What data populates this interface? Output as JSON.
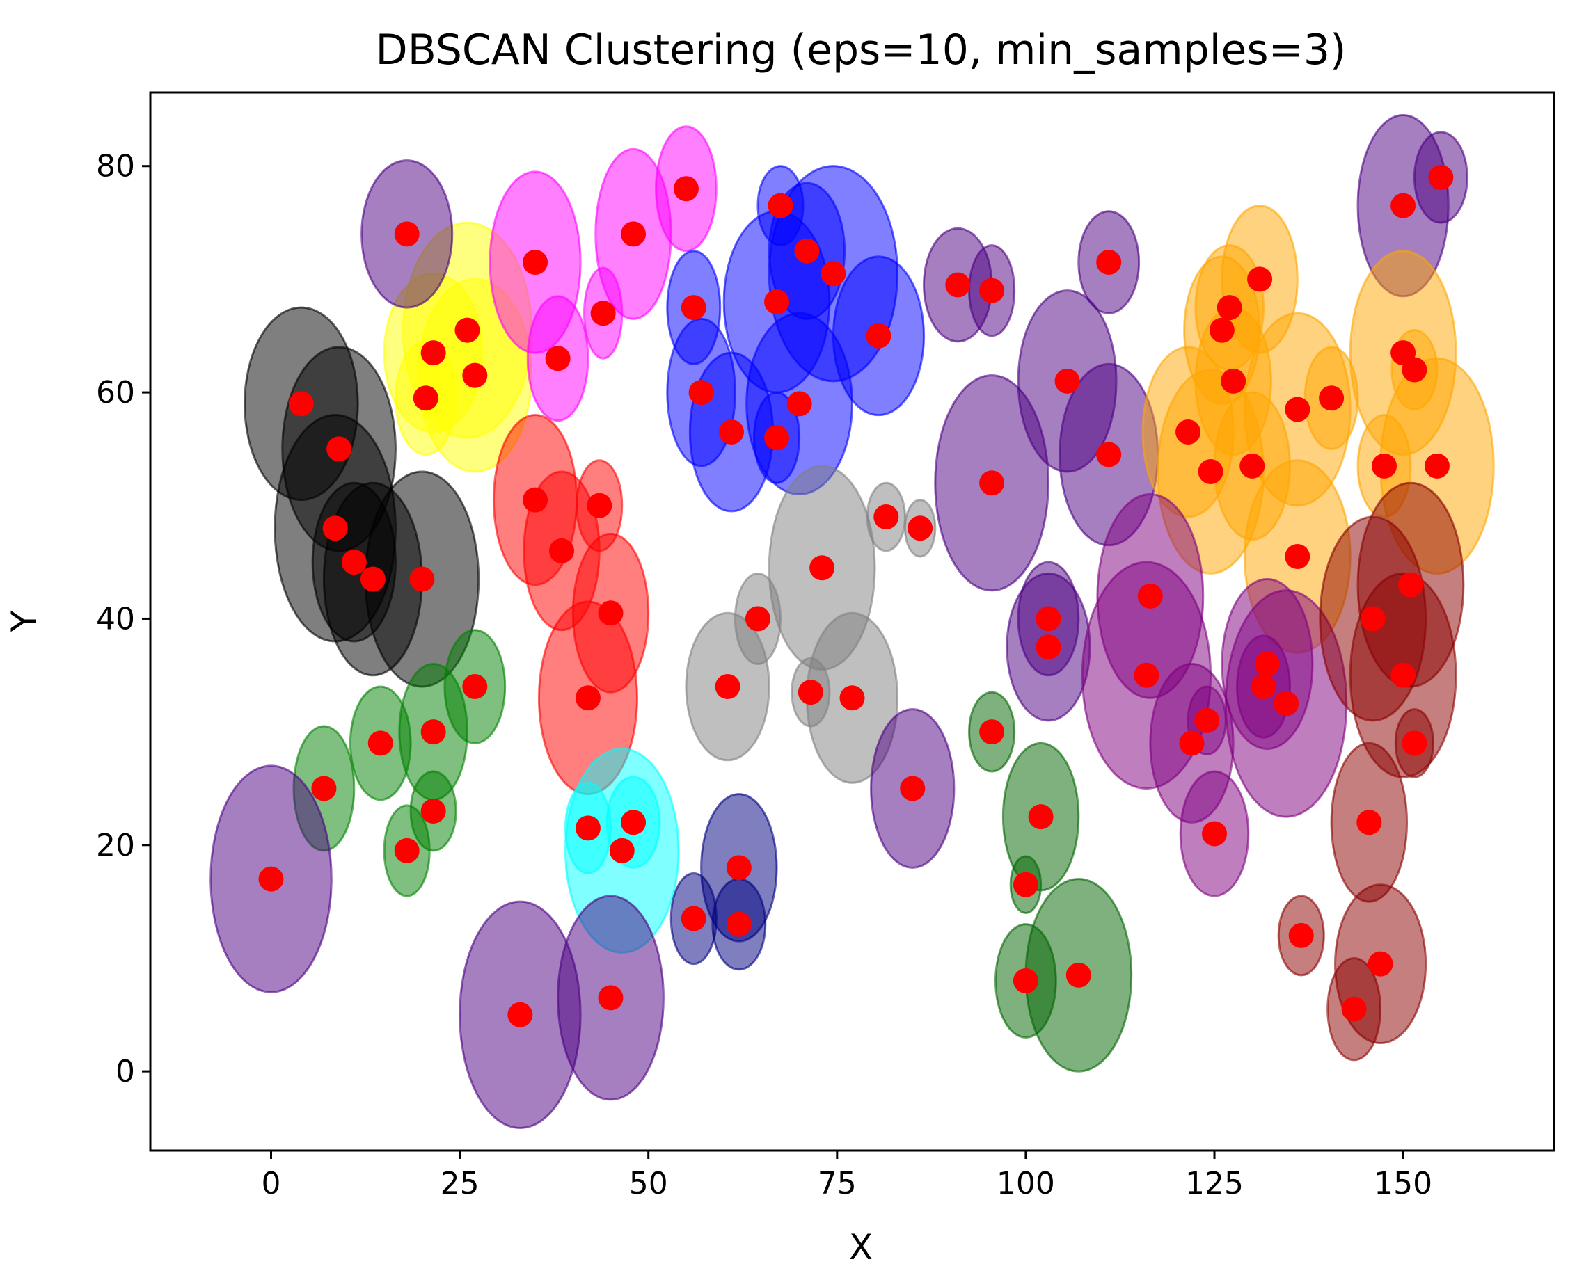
{
  "chart_data": {
    "type": "scatter",
    "title": "DBSCAN Clustering (eps=10, min_samples=3)",
    "xlabel": "X",
    "ylabel": "Y",
    "xlim": [
      -16,
      170
    ],
    "ylim": [
      -7,
      86.5
    ],
    "xticks": [
      0,
      25,
      50,
      75,
      100,
      125,
      150
    ],
    "yticks": [
      0,
      20,
      40,
      60,
      80
    ],
    "grid": false,
    "point_color": "#ff0000",
    "clusters": [
      {
        "color": "#000000",
        "points": [
          {
            "x": 4,
            "y": 59,
            "rx": 7.5,
            "ry": 8.5
          },
          {
            "x": 9,
            "y": 55,
            "rx": 7.5,
            "ry": 9
          },
          {
            "x": 8.5,
            "y": 48,
            "rx": 8,
            "ry": 10
          },
          {
            "x": 11,
            "y": 45,
            "rx": 5.5,
            "ry": 7
          },
          {
            "x": 13.5,
            "y": 43.5,
            "rx": 6.5,
            "ry": 8.5
          },
          {
            "x": 20,
            "y": 43.5,
            "rx": 7.5,
            "ry": 9.5
          }
        ]
      },
      {
        "color": "#ffff00",
        "points": [
          {
            "x": 21.5,
            "y": 63.5,
            "rx": 6.5,
            "ry": 7
          },
          {
            "x": 20.5,
            "y": 59.5,
            "rx": 4,
            "ry": 5
          },
          {
            "x": 26,
            "y": 65.5,
            "rx": 8.5,
            "ry": 9.5
          },
          {
            "x": 27,
            "y": 61.5,
            "rx": 7.5,
            "ry": 8.5
          }
        ]
      },
      {
        "color": "#ff00ff",
        "points": [
          {
            "x": 35,
            "y": 71.5,
            "rx": 6,
            "ry": 8
          },
          {
            "x": 38,
            "y": 63,
            "rx": 4,
            "ry": 5.5
          },
          {
            "x": 44,
            "y": 67,
            "rx": 2.5,
            "ry": 4
          },
          {
            "x": 48,
            "y": 74,
            "rx": 5,
            "ry": 7.5
          },
          {
            "x": 55,
            "y": 78,
            "rx": 4,
            "ry": 5.5
          }
        ]
      },
      {
        "color": "#0000ff",
        "points": [
          {
            "x": 56,
            "y": 67.5,
            "rx": 3.5,
            "ry": 5
          },
          {
            "x": 57,
            "y": 60,
            "rx": 4.5,
            "ry": 6.5
          },
          {
            "x": 61,
            "y": 56.5,
            "rx": 5.5,
            "ry": 7
          },
          {
            "x": 67.5,
            "y": 76.5,
            "rx": 3,
            "ry": 3.5
          },
          {
            "x": 71,
            "y": 72.5,
            "rx": 5,
            "ry": 6
          },
          {
            "x": 67,
            "y": 68,
            "rx": 7,
            "ry": 8
          },
          {
            "x": 74.5,
            "y": 70.5,
            "rx": 8.5,
            "ry": 9.5
          },
          {
            "x": 70,
            "y": 59,
            "rx": 7,
            "ry": 8
          },
          {
            "x": 67,
            "y": 56,
            "rx": 3,
            "ry": 4
          },
          {
            "x": 80.5,
            "y": 65,
            "rx": 6,
            "ry": 7
          }
        ]
      },
      {
        "color": "#ff0000",
        "points": [
          {
            "x": 35,
            "y": 50.5,
            "rx": 5.5,
            "ry": 7.5
          },
          {
            "x": 38.5,
            "y": 46,
            "rx": 5,
            "ry": 7
          },
          {
            "x": 43.5,
            "y": 50,
            "rx": 3,
            "ry": 4
          },
          {
            "x": 45,
            "y": 40.5,
            "rx": 5,
            "ry": 7
          },
          {
            "x": 42,
            "y": 33,
            "rx": 6.5,
            "ry": 8.5
          }
        ]
      },
      {
        "color": "#008000",
        "points": [
          {
            "x": 7,
            "y": 25,
            "rx": 4,
            "ry": 5.5
          },
          {
            "x": 14.5,
            "y": 29,
            "rx": 4,
            "ry": 5
          },
          {
            "x": 18,
            "y": 19.5,
            "rx": 3,
            "ry": 4
          },
          {
            "x": 21.5,
            "y": 30,
            "rx": 4.5,
            "ry": 6
          },
          {
            "x": 21.5,
            "y": 23,
            "rx": 3,
            "ry": 3.5
          },
          {
            "x": 27,
            "y": 34,
            "rx": 4,
            "ry": 5
          }
        ]
      },
      {
        "color": "#00ffff",
        "points": [
          {
            "x": 42,
            "y": 21.5,
            "rx": 3,
            "ry": 4
          },
          {
            "x": 46.5,
            "y": 19.5,
            "rx": 7.5,
            "ry": 9
          },
          {
            "x": 48,
            "y": 22,
            "rx": 3.5,
            "ry": 4
          }
        ]
      },
      {
        "color": "#000080",
        "points": [
          {
            "x": 56,
            "y": 13.5,
            "rx": 3,
            "ry": 4
          },
          {
            "x": 62,
            "y": 18,
            "rx": 5,
            "ry": 6.5
          },
          {
            "x": 62,
            "y": 13,
            "rx": 3.5,
            "ry": 4
          }
        ]
      },
      {
        "color": "#808080",
        "points": [
          {
            "x": 64.5,
            "y": 40,
            "rx": 3,
            "ry": 4
          },
          {
            "x": 60.5,
            "y": 34,
            "rx": 5.5,
            "ry": 6.5
          },
          {
            "x": 73,
            "y": 44.5,
            "rx": 7,
            "ry": 9
          },
          {
            "x": 71.5,
            "y": 33.5,
            "rx": 2.5,
            "ry": 3
          },
          {
            "x": 77,
            "y": 33,
            "rx": 6,
            "ry": 7.5
          },
          {
            "x": 81.5,
            "y": 49,
            "rx": 2.5,
            "ry": 3
          },
          {
            "x": 86,
            "y": 48,
            "rx": 2,
            "ry": 2.5
          }
        ]
      },
      {
        "color": "#4b0082",
        "points": [
          {
            "x": 0,
            "y": 17,
            "rx": 8,
            "ry": 10
          },
          {
            "x": 18,
            "y": 74,
            "rx": 6,
            "ry": 6.5
          },
          {
            "x": 33,
            "y": 5,
            "rx": 8,
            "ry": 10
          },
          {
            "x": 45,
            "y": 6.5,
            "rx": 7,
            "ry": 9
          },
          {
            "x": 85,
            "y": 25,
            "rx": 5.5,
            "ry": 7
          },
          {
            "x": 91,
            "y": 69.5,
            "rx": 4.5,
            "ry": 5
          },
          {
            "x": 95.5,
            "y": 69,
            "rx": 3,
            "ry": 4
          },
          {
            "x": 95.5,
            "y": 52,
            "rx": 7.5,
            "ry": 9.5
          },
          {
            "x": 103,
            "y": 40,
            "rx": 4,
            "ry": 5
          },
          {
            "x": 103,
            "y": 37.5,
            "rx": 5.5,
            "ry": 6.5
          },
          {
            "x": 105.5,
            "y": 61,
            "rx": 6.5,
            "ry": 8
          },
          {
            "x": 111,
            "y": 71.5,
            "rx": 4,
            "ry": 4.5
          },
          {
            "x": 111,
            "y": 54.5,
            "rx": 6.5,
            "ry": 8
          },
          {
            "x": 150,
            "y": 76.5,
            "rx": 6,
            "ry": 8
          },
          {
            "x": 155,
            "y": 79,
            "rx": 3.5,
            "ry": 4
          }
        ]
      },
      {
        "color": "#ffa500",
        "points": [
          {
            "x": 126,
            "y": 65.5,
            "rx": 5,
            "ry": 6.5
          },
          {
            "x": 127,
            "y": 67.5,
            "rx": 4.5,
            "ry": 5.5
          },
          {
            "x": 131,
            "y": 70,
            "rx": 5,
            "ry": 6.5
          },
          {
            "x": 127.5,
            "y": 61,
            "rx": 5,
            "ry": 6.5
          },
          {
            "x": 121.5,
            "y": 56.5,
            "rx": 6,
            "ry": 7.5
          },
          {
            "x": 124.5,
            "y": 53,
            "rx": 7,
            "ry": 9
          },
          {
            "x": 130,
            "y": 53.5,
            "rx": 5,
            "ry": 6.5
          },
          {
            "x": 136,
            "y": 58.5,
            "rx": 7,
            "ry": 8.5
          },
          {
            "x": 140.5,
            "y": 59.5,
            "rx": 3.5,
            "ry": 4.5
          },
          {
            "x": 136,
            "y": 45.5,
            "rx": 7,
            "ry": 8.5
          },
          {
            "x": 150,
            "y": 63.5,
            "rx": 7,
            "ry": 9
          },
          {
            "x": 151.5,
            "y": 62,
            "rx": 3,
            "ry": 3.5
          },
          {
            "x": 147.5,
            "y": 53.5,
            "rx": 3.5,
            "ry": 4.5
          },
          {
            "x": 154.5,
            "y": 53.5,
            "rx": 7.5,
            "ry": 9.5
          }
        ]
      },
      {
        "color": "#800080",
        "points": [
          {
            "x": 116.5,
            "y": 42,
            "rx": 7,
            "ry": 9
          },
          {
            "x": 116,
            "y": 35,
            "rx": 8.5,
            "ry": 10
          },
          {
            "x": 122,
            "y": 29,
            "rx": 5.5,
            "ry": 7
          },
          {
            "x": 124,
            "y": 31,
            "rx": 2.5,
            "ry": 3
          },
          {
            "x": 125,
            "y": 21,
            "rx": 4.5,
            "ry": 5.5
          },
          {
            "x": 132,
            "y": 36,
            "rx": 6,
            "ry": 7.5
          },
          {
            "x": 131.5,
            "y": 34,
            "rx": 3.5,
            "ry": 4.5
          },
          {
            "x": 134.5,
            "y": 32.5,
            "rx": 8,
            "ry": 10
          }
        ]
      },
      {
        "color": "#8b0000",
        "points": [
          {
            "x": 146,
            "y": 40,
            "rx": 7,
            "ry": 9
          },
          {
            "x": 151,
            "y": 43,
            "rx": 7,
            "ry": 9
          },
          {
            "x": 150,
            "y": 35,
            "rx": 7,
            "ry": 9
          },
          {
            "x": 151.5,
            "y": 29,
            "rx": 2.5,
            "ry": 3
          },
          {
            "x": 145.5,
            "y": 22,
            "rx": 5,
            "ry": 7
          },
          {
            "x": 136.5,
            "y": 12,
            "rx": 3,
            "ry": 3.5
          },
          {
            "x": 147,
            "y": 9.5,
            "rx": 6,
            "ry": 7
          },
          {
            "x": 143.5,
            "y": 5.5,
            "rx": 3.5,
            "ry": 4.5
          }
        ]
      },
      {
        "color": "#006400",
        "points": [
          {
            "x": 95.5,
            "y": 30,
            "rx": 3,
            "ry": 3.5
          },
          {
            "x": 102,
            "y": 22.5,
            "rx": 5,
            "ry": 6.5
          },
          {
            "x": 100,
            "y": 16.5,
            "rx": 2,
            "ry": 2.5
          },
          {
            "x": 100,
            "y": 8,
            "rx": 4,
            "ry": 5
          },
          {
            "x": 107,
            "y": 8.5,
            "rx": 7,
            "ry": 8.5
          }
        ]
      }
    ]
  }
}
